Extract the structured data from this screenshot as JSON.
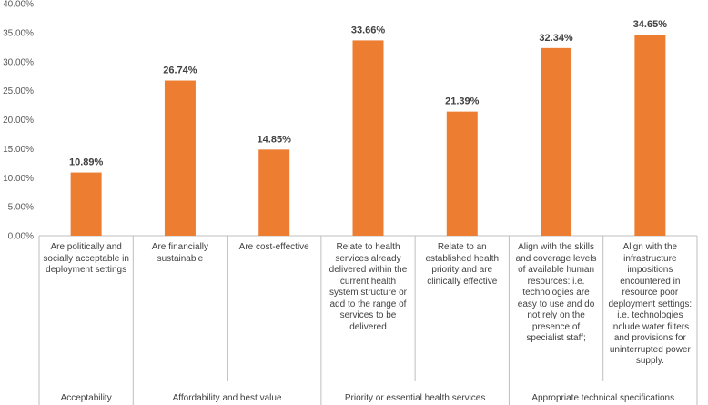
{
  "chart_data": {
    "type": "bar",
    "title": "",
    "xlabel": "",
    "ylabel": "",
    "ylim": [
      0,
      40
    ],
    "yticks": [
      "0.00%",
      "5.00%",
      "10.00%",
      "15.00%",
      "20.00%",
      "25.00%",
      "30.00%",
      "35.00%",
      "40.00%"
    ],
    "bar_color": "#ed7d31",
    "categories": [
      "Are politically and socially acceptable in deployment settings",
      "Are financially sustainable",
      "Are cost-effective",
      "Relate to health services already delivered within the current health system structure or add to the range of services to be delivered",
      "Relate to an established health priority and are clinically effective",
      "Align with the skills and coverage levels of available human resources: i.e. technologies are easy to use and do not rely on the presence of specialist staff;",
      "Align with the infrastructure impositions encountered in resource poor deployment settings: i.e. technologies include water filters and provisions for uninterrupted power supply."
    ],
    "values": [
      10.89,
      26.74,
      14.85,
      33.66,
      21.39,
      32.34,
      34.65
    ],
    "data_labels": [
      "10.89%",
      "26.74%",
      "14.85%",
      "33.66%",
      "21.39%",
      "32.34%",
      "34.65%"
    ],
    "groups": [
      {
        "label": "Acceptability",
        "span": 1
      },
      {
        "label": "Affordability and best value",
        "span": 2
      },
      {
        "label": "Priority or essential health services",
        "span": 2
      },
      {
        "label": "Appropriate technical specifications",
        "span": 2
      }
    ]
  }
}
